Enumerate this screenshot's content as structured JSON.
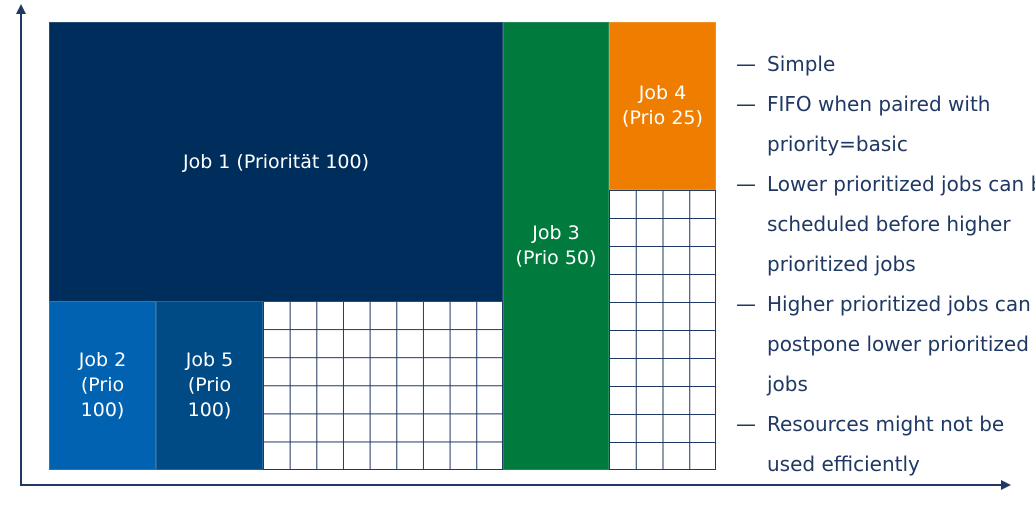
{
  "colors": {
    "job1": "#002e5c",
    "job2": "#0062b0",
    "job5": "#004a86",
    "job3": "#007a3d",
    "job4": "#ee7d00",
    "grid_line": "#1f3864",
    "text": "#1f3864"
  },
  "jobs": {
    "job1": {
      "line1": "Job 1 (Priorität 100)"
    },
    "job2": {
      "line1": "Job 2",
      "line2": "(Prio",
      "line3": "100)"
    },
    "job5": {
      "line1": "Job 5",
      "line2": "(Prio",
      "line3": "100)"
    },
    "job3": {
      "line1": "Job 3",
      "line2": "(Prio 50)"
    },
    "job4": {
      "line1": "Job 4",
      "line2": "(Prio 25)"
    }
  },
  "bullets": {
    "dash": "—",
    "items": [
      "Simple",
      "FIFO when paired with priority=basic",
      "Lower prioritized jobs can be scheduled before higher prioritized jobs",
      "Higher prioritized jobs can postpone lower prioritized jobs",
      "Resources might not be used efficiently"
    ]
  }
}
